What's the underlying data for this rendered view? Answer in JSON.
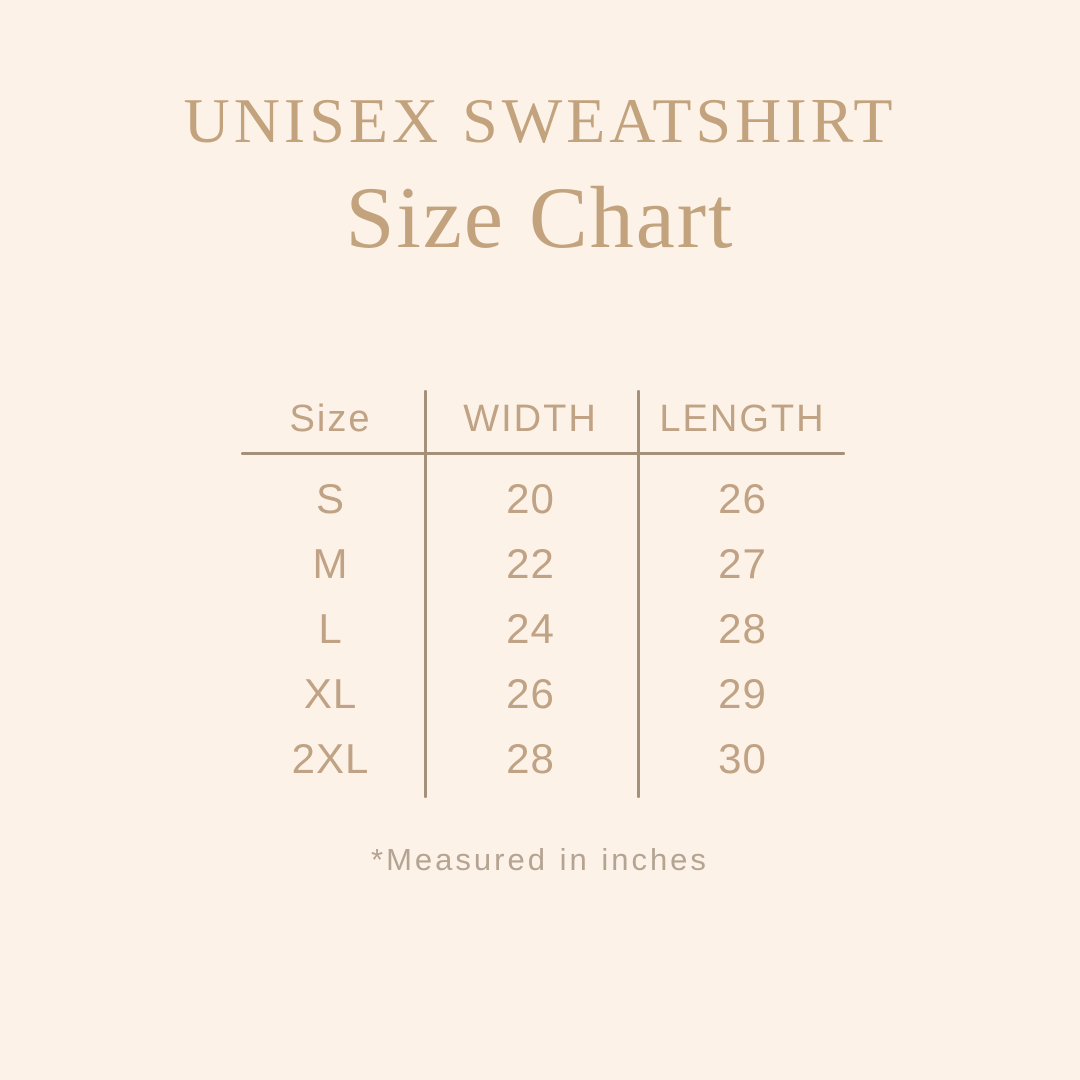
{
  "colors": {
    "background": "#fcf2e8",
    "heading_text": "#c2a37e",
    "table_text": "#c0a284",
    "rule_line": "#a5907a",
    "footnote_text": "#b5a492"
  },
  "header": {
    "title": "UNISEX SWEATSHIRT",
    "subtitle": "Size Chart"
  },
  "chart_data": {
    "type": "table",
    "title": "UNISEX SWEATSHIRT Size Chart",
    "columns": [
      "Size",
      "WIDTH",
      "LENGTH"
    ],
    "rows": [
      [
        "S",
        "20",
        "26"
      ],
      [
        "M",
        "22",
        "27"
      ],
      [
        "L",
        "24",
        "28"
      ],
      [
        "XL",
        "26",
        "29"
      ],
      [
        "2XL",
        "28",
        "30"
      ]
    ],
    "footnote": "*Measured in inches"
  },
  "footer": {
    "note": "*Measured in inches"
  }
}
